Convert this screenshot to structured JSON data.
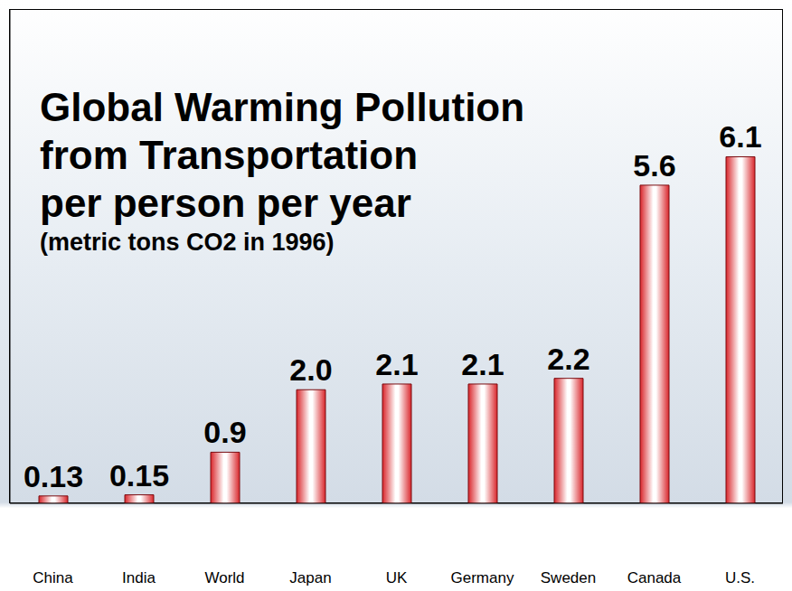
{
  "chart_data": {
    "type": "bar",
    "title": "Global Warming Pollution\nfrom Transportation\nper person per year",
    "subtitle": "(metric tons CO2 in 1996)",
    "categories": [
      "China",
      "India",
      "World",
      "Japan",
      "UK",
      "Germany",
      "Sweden",
      "Canada",
      "U.S."
    ],
    "values": [
      0.13,
      0.15,
      0.9,
      2.0,
      2.1,
      2.1,
      2.2,
      5.6,
      6.1
    ],
    "value_labels": [
      "0.13",
      "0.15",
      "0.9",
      "2.0",
      "2.1",
      "2.1",
      "2.2",
      "5.6",
      "6.1"
    ],
    "color": "#d9262b",
    "ylim": [
      0,
      8.7
    ],
    "data_labels": true,
    "tick_labels": "x",
    "grid": false
  }
}
